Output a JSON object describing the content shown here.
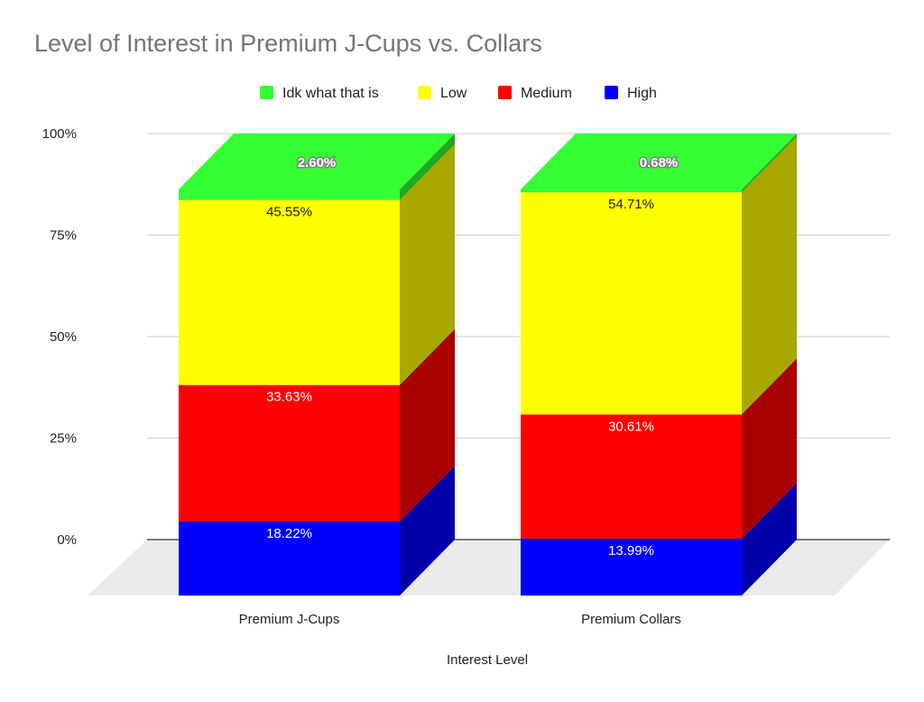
{
  "chart_data": {
    "type": "bar",
    "stacked": true,
    "three_d": true,
    "normalized_percent": true,
    "title": "Level of Interest in Premium J-Cups vs. Collars",
    "xlabel": "Interest Level",
    "ylabel": "",
    "categories": [
      "Premium J-Cups",
      "Premium Collars"
    ],
    "ylim": [
      0,
      100
    ],
    "yticks": [
      "0%",
      "25%",
      "50%",
      "75%",
      "100%"
    ],
    "ytick_values": [
      0,
      25,
      50,
      75,
      100
    ],
    "legend_position": "top",
    "grid": true,
    "series": [
      {
        "name": "High",
        "color": "#0000ff",
        "values": [
          18.22,
          13.99
        ],
        "labels": [
          "18.22%",
          "13.99%"
        ]
      },
      {
        "name": "Medium",
        "color": "#ff0000",
        "values": [
          33.63,
          30.61
        ],
        "labels": [
          "33.63%",
          "30.61%"
        ]
      },
      {
        "name": "Low",
        "color": "#ffff00",
        "values": [
          45.55,
          54.71
        ],
        "labels": [
          "45.55%",
          "54.71%"
        ]
      },
      {
        "name": "Idk what that is",
        "color": "#33ff33",
        "values": [
          2.6,
          0.68
        ],
        "labels": [
          "2.60%",
          "0.68%"
        ]
      }
    ],
    "legend_order": [
      "Idk what that is",
      "Low",
      "Medium",
      "High"
    ]
  }
}
